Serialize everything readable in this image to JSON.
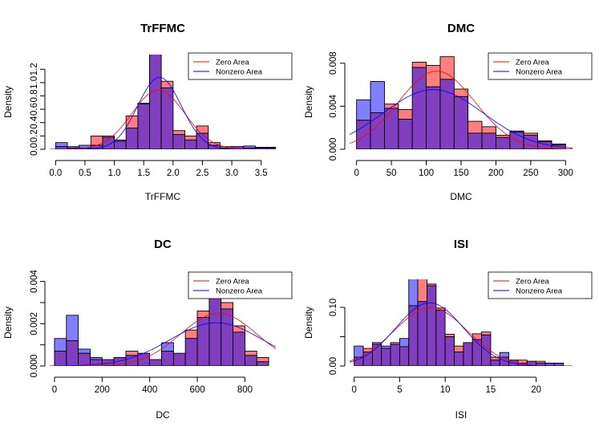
{
  "chart_data": [
    {
      "type": "bar",
      "title": "TrFFMC",
      "xlabel": "TrFFMC",
      "ylabel": "Density",
      "xlim": [
        -0.1,
        3.75
      ],
      "ylim": [
        0,
        1.42
      ],
      "xticks": [
        0,
        0.5,
        1,
        1.5,
        2,
        2.5,
        3,
        3.5
      ],
      "xtick_labels": [
        "0.0",
        "0.5",
        "1.0",
        "1.5",
        "2.0",
        "2.5",
        "3.0",
        "3.5"
      ],
      "yticks": [
        0,
        0.2,
        0.4,
        0.6,
        0.8,
        1.0,
        1.2
      ],
      "ytick_labels": [
        "0.0",
        "0.2",
        "0.4",
        "0.6",
        "0.8",
        "1.0",
        "1.2"
      ],
      "bin_edges": [
        0,
        0.2,
        0.4,
        0.6,
        0.8,
        1.0,
        1.2,
        1.4,
        1.6,
        1.8,
        2.0,
        2.2,
        2.4,
        2.6,
        2.8,
        3.0,
        3.2,
        3.4,
        3.6,
        3.8
      ],
      "series": [
        {
          "name": "Zero Area",
          "values": [
            0.04,
            0.02,
            0.02,
            0.2,
            0.2,
            0.12,
            0.5,
            0.68,
            1.45,
            1.02,
            0.28,
            0.2,
            0.35,
            0.1,
            0.04,
            0.04,
            0.02,
            0.02,
            0.02
          ]
        },
        {
          "name": "Nonzero Area",
          "values": [
            0.1,
            0.04,
            0.06,
            0.06,
            0.18,
            0.14,
            0.32,
            0.69,
            1.52,
            0.92,
            0.22,
            0.14,
            0.24,
            0.06,
            0.02,
            0.04,
            0.05,
            0.03,
            0.03
          ]
        }
      ],
      "density_curves": [
        {
          "name": "Zero Area",
          "mean": 1.75,
          "sd": 0.45
        },
        {
          "name": "Nonzero Area",
          "mean": 1.77,
          "sd": 0.37
        }
      ],
      "legend": {
        "position": "top-right",
        "entries": [
          "Zero Area",
          "Nonzero Area"
        ]
      }
    },
    {
      "type": "bar",
      "title": "DMC",
      "xlabel": "DMC",
      "ylabel": "Density",
      "xlim": [
        -10,
        310
      ],
      "ylim": [
        0,
        0.0088
      ],
      "xticks": [
        0,
        50,
        100,
        150,
        200,
        250,
        300
      ],
      "xtick_labels": [
        "0",
        "50",
        "100",
        "150",
        "200",
        "250",
        "300"
      ],
      "yticks": [
        0,
        0.004,
        0.008
      ],
      "ytick_labels": [
        "0.000",
        "0.004",
        "0.008"
      ],
      "bin_edges": [
        0,
        20,
        40,
        60,
        80,
        100,
        120,
        140,
        160,
        180,
        200,
        220,
        240,
        260,
        280,
        300
      ],
      "series": [
        {
          "name": "Zero Area",
          "values": [
            0.0027,
            0.0034,
            0.0042,
            0.0037,
            0.0081,
            0.0078,
            0.0086,
            0.0056,
            0.0026,
            0.0021,
            0.0013,
            0.0016,
            0.0015,
            0.0008,
            0.0005
          ]
        },
        {
          "name": "Nonzero Area",
          "values": [
            0.0046,
            0.0063,
            0.0038,
            0.0028,
            0.0076,
            0.0058,
            0.0065,
            0.0049,
            0.0015,
            0.0015,
            0.0011,
            0.0017,
            0.0013,
            0.0007,
            0.0004
          ]
        }
      ],
      "density_curves": [
        {
          "name": "Zero Area",
          "mean": 115,
          "sd": 55
        },
        {
          "name": "Nonzero Area",
          "mean": 110,
          "sd": 72
        }
      ],
      "legend": {
        "position": "top-right",
        "entries": [
          "Zero Area",
          "Nonzero Area"
        ]
      }
    },
    {
      "type": "bar",
      "title": "DC",
      "xlabel": "DC",
      "ylabel": "Density",
      "xlim": [
        -20,
        930
      ],
      "ylim": [
        0,
        0.0041
      ],
      "xticks": [
        0,
        200,
        400,
        600,
        800
      ],
      "xtick_labels": [
        "0",
        "200",
        "400",
        "600",
        "800"
      ],
      "yticks": [
        0,
        0.001,
        0.002,
        0.003,
        0.004
      ],
      "ytick_labels": [
        "0.000",
        "",
        "0.002",
        "",
        "0.004"
      ],
      "bin_edges": [
        0,
        50,
        100,
        150,
        200,
        250,
        300,
        350,
        400,
        450,
        500,
        550,
        600,
        650,
        700,
        750,
        800,
        850,
        900
      ],
      "series": [
        {
          "name": "Zero Area",
          "values": [
            0.0007,
            0.0012,
            0.0006,
            0.0003,
            0.0003,
            0.0004,
            0.0007,
            0.0006,
            0.0003,
            0.0007,
            0.0006,
            0.0017,
            0.0026,
            0.0032,
            0.003,
            0.0019,
            0.0007,
            0.0004
          ]
        },
        {
          "name": "Nonzero Area",
          "values": [
            0.0013,
            0.0024,
            0.0008,
            0.0004,
            0.0003,
            0.0004,
            0.0005,
            0.0006,
            0.0003,
            0.0011,
            0.0006,
            0.0013,
            0.0023,
            0.0041,
            0.0027,
            0.0016,
            0.0005,
            0.0002
          ]
        }
      ],
      "density_curves": [
        {
          "name": "Zero Area",
          "mean": 690,
          "sd": 160
        },
        {
          "name": "Nonzero Area",
          "mean": 680,
          "sd": 195
        }
      ],
      "legend": {
        "position": "top-right",
        "entries": [
          "Zero Area",
          "Nonzero Area"
        ]
      }
    },
    {
      "type": "bar",
      "title": "ISI",
      "xlabel": "ISI",
      "ylabel": "Density",
      "xlim": [
        -0.5,
        24
      ],
      "ylim": [
        0,
        0.148
      ],
      "xticks": [
        0,
        5,
        10,
        15,
        20
      ],
      "xtick_labels": [
        "0",
        "5",
        "10",
        "15",
        "20"
      ],
      "yticks": [
        0,
        0.05,
        0.1
      ],
      "ytick_labels": [
        "0.00",
        "",
        "0.10"
      ],
      "bin_edges": [
        0,
        1,
        2,
        3,
        4,
        5,
        6,
        7,
        8,
        9,
        10,
        11,
        12,
        13,
        14,
        15,
        16,
        17,
        18,
        19,
        20,
        21,
        22,
        23
      ],
      "series": [
        {
          "name": "Zero Area",
          "values": [
            0.015,
            0.03,
            0.037,
            0.03,
            0.04,
            0.033,
            0.103,
            0.16,
            0.14,
            0.099,
            0.054,
            0.034,
            0.04,
            0.055,
            0.058,
            0.015,
            0.015,
            0.01,
            0.01,
            0.008,
            0.008,
            0.005,
            0.005
          ]
        },
        {
          "name": "Nonzero Area",
          "values": [
            0.034,
            0.024,
            0.04,
            0.034,
            0.037,
            0.047,
            0.155,
            0.11,
            0.137,
            0.095,
            0.05,
            0.024,
            0.04,
            0.045,
            0.053,
            0.01,
            0.023,
            0.01,
            0.005,
            0.008,
            0.005,
            0.005,
            0.005
          ]
        }
      ],
      "density_curves": [
        {
          "name": "Zero Area",
          "mean": 8.4,
          "sd": 4.0
        },
        {
          "name": "Nonzero Area",
          "mean": 8.3,
          "sd": 3.7
        }
      ],
      "legend": {
        "position": "top-right",
        "entries": [
          "Zero Area",
          "Nonzero Area"
        ]
      }
    }
  ],
  "colors": {
    "zero_fill": "#ff7f7f",
    "nonzero_fill": "#7f7fff",
    "overlap_fill": "#7f3fbf",
    "zero_line": "#ff0000",
    "nonzero_line": "#0000ff",
    "axis": "#000000"
  }
}
